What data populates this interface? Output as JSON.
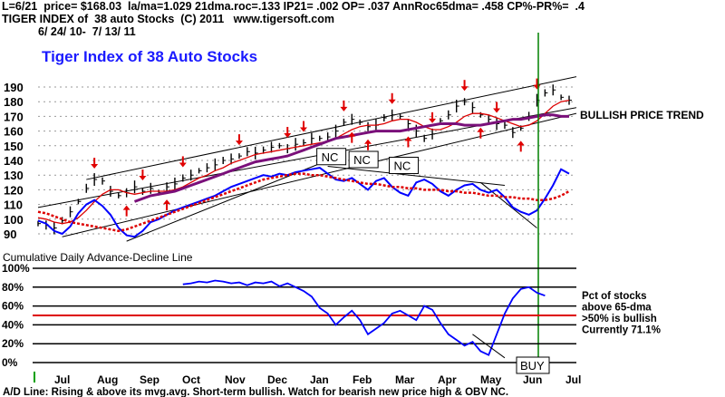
{
  "header": {
    "line1": "L=6/21  price= $168.03  la/ma=1.029 21dma.roc=.133 IP21= .002 OP= .037 AnnRoc65dma= .458 CP%-PR%=  .4",
    "line2": "TIGER INDEX of  38 auto Stocks  (C) 2011   www.tigersoft.com",
    "line3": "6/ 24/ 10-  7/ 13/ 11"
  },
  "chart_data": [
    {
      "type": "line",
      "title": "Tiger Index of 38 Auto Stocks",
      "title_color": "#1a1aff",
      "yticks": [
        90,
        100,
        110,
        120,
        130,
        140,
        150,
        160,
        170,
        180,
        190
      ],
      "ylim": [
        85,
        195
      ],
      "x_months": [
        "Jul",
        "Aug",
        "Sep",
        "Oct",
        "Nov",
        "Dec",
        "Jan",
        "Feb",
        "Mar",
        "Apr",
        "May",
        "Jun",
        "Jul"
      ],
      "price": [
        97,
        96,
        94,
        99,
        105,
        112,
        121,
        127,
        126,
        119,
        116,
        118,
        122,
        119,
        121,
        118,
        122,
        124,
        128,
        130,
        133,
        135,
        137,
        140,
        141,
        143,
        146,
        145,
        147,
        149,
        150,
        148,
        151,
        152,
        155,
        155,
        156,
        160,
        166,
        168,
        166,
        163,
        164,
        169,
        171,
        170,
        165,
        160,
        155,
        158,
        167,
        171,
        177,
        180,
        176,
        171,
        168,
        165,
        164,
        159,
        162,
        170,
        181,
        186,
        188,
        183,
        181
      ],
      "ma_red": [
        101,
        100,
        98,
        97,
        98,
        101,
        106,
        112,
        117,
        120,
        120,
        118,
        117,
        118,
        119,
        119,
        119,
        120,
        122,
        125,
        128,
        130,
        133,
        135,
        138,
        140,
        142,
        144,
        145,
        146,
        147,
        148,
        149,
        150,
        151,
        152,
        153,
        155,
        158,
        161,
        163,
        164,
        164,
        165,
        167,
        168,
        168,
        166,
        163,
        161,
        161,
        163,
        166,
        170,
        172,
        172,
        171,
        169,
        167,
        165,
        163,
        164,
        167,
        172,
        177,
        180,
        181
      ],
      "ma_purple_start": 12,
      "ma_purple": [
        112,
        114,
        116,
        117,
        118,
        119,
        121,
        123,
        125,
        127,
        129,
        131,
        133,
        135,
        137,
        139,
        140,
        141,
        142,
        143,
        145,
        147,
        149,
        151,
        153,
        155,
        156,
        157,
        158,
        159,
        160,
        160,
        160,
        160,
        161,
        162,
        163,
        164,
        165,
        165,
        165,
        164,
        164,
        164,
        165,
        166,
        167,
        168,
        168,
        169,
        170,
        171,
        171,
        170,
        170
      ],
      "ad_line": [
        99,
        97,
        92,
        90,
        95,
        104,
        110,
        113,
        109,
        103,
        94,
        89,
        88,
        92,
        98,
        100,
        103,
        106,
        108,
        110,
        112,
        114,
        116,
        119,
        122,
        124,
        126,
        128,
        130,
        129,
        131,
        130,
        132,
        133,
        134,
        135,
        131,
        127,
        126,
        128,
        124,
        120,
        126,
        128,
        122,
        118,
        116,
        125,
        127,
        124,
        119,
        116,
        120,
        123,
        124,
        120,
        118,
        120,
        115,
        108,
        105,
        103,
        106,
        114,
        123,
        134,
        131
      ],
      "ad_ma": [
        105,
        104,
        102,
        100,
        98,
        97,
        96,
        95,
        94,
        93,
        92,
        93,
        95,
        97,
        99,
        101,
        103,
        105,
        107,
        109,
        111,
        113,
        115,
        117,
        119,
        121,
        123,
        125,
        127,
        128,
        129,
        130,
        131,
        131,
        130,
        130,
        129,
        128,
        127,
        126,
        125,
        124,
        124,
        123,
        122,
        122,
        121,
        121,
        120,
        120,
        120,
        119,
        119,
        118,
        118,
        117,
        116,
        116,
        115,
        115,
        114,
        114,
        113,
        113,
        114,
        116,
        119
      ],
      "annotations": [
        {
          "label": "NC",
          "x": 36,
          "y": 142
        },
        {
          "label": "NC",
          "x": 40,
          "y": 140
        },
        {
          "label": "NC",
          "x": 45,
          "y": 136
        },
        {
          "label": "BULLISH PRICE TREND"
        }
      ],
      "sell_arrows": [
        7,
        13,
        18,
        25,
        31,
        33,
        38,
        44,
        49,
        53,
        57,
        62
      ],
      "buy_arrows": [
        11,
        16,
        39,
        41,
        46,
        55,
        60
      ]
    },
    {
      "type": "line",
      "title": "Cumulative Daily Advance-Decline Line",
      "yticks": [
        "100%",
        "80%",
        "60%",
        "40%",
        "20%",
        "0%"
      ],
      "ylim": [
        0,
        100
      ],
      "pct_start": 18,
      "pct_above_65dma": [
        83,
        84,
        86,
        85,
        87,
        86,
        84,
        85,
        82,
        85,
        84,
        86,
        81,
        84,
        80,
        76,
        70,
        58,
        52,
        40,
        48,
        55,
        45,
        30,
        36,
        42,
        52,
        55,
        50,
        45,
        60,
        56,
        42,
        30,
        24,
        18,
        22,
        12,
        8,
        30,
        52,
        68,
        78,
        80,
        74,
        71
      ],
      "notes": [
        "Pct of stocks",
        "above 65-dma",
        ">50% is bullish",
        "Currently  71.1%"
      ],
      "signal": "BUY"
    }
  ],
  "footer": "A/D Line: Rising & above its mvg.avg. Short-term bullish. Watch for bearish new price high & OBV NC."
}
